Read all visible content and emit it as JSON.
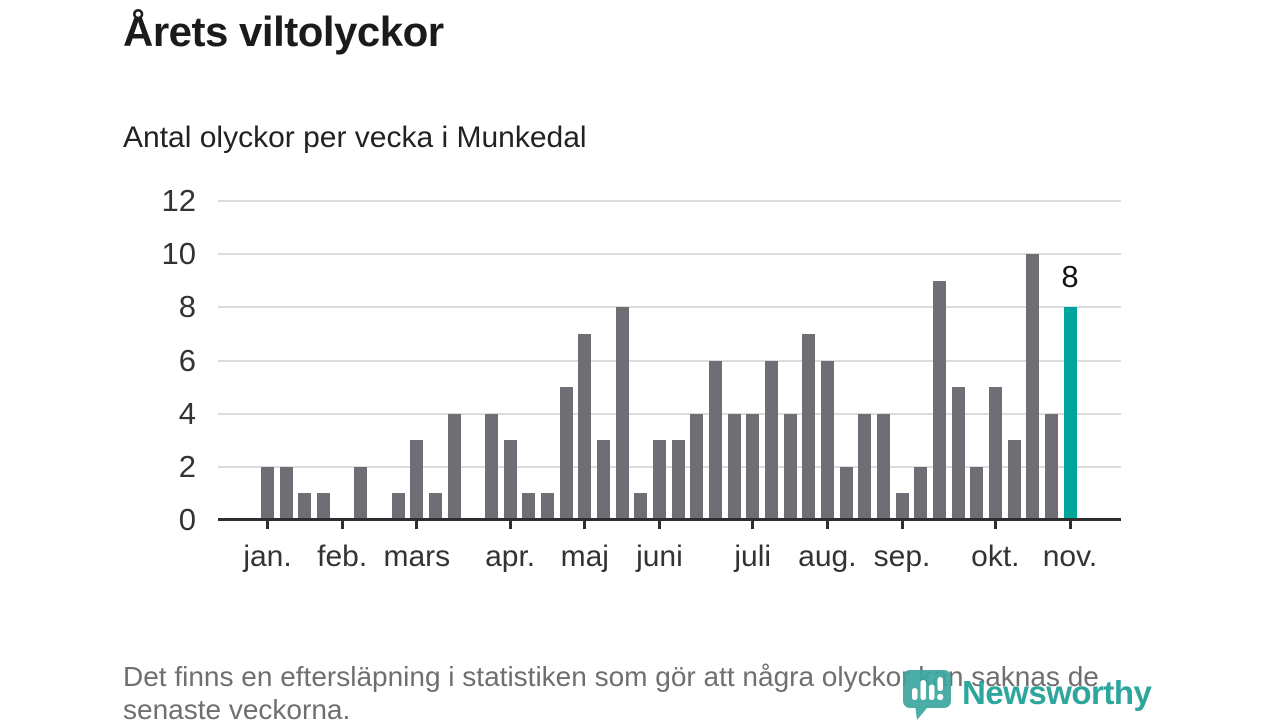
{
  "title": "Årets viltolyckor",
  "subtitle": "Antal olyckor per vecka i Munkedal",
  "footer": "Det finns en eftersläpning i statistiken som gör att några olyckor kan saknas de senaste veckorna.",
  "logo": {
    "text": "Newsworthy",
    "icon": "bar-chart-speech-bubble-icon"
  },
  "colors": {
    "bar": "#706d75",
    "highlight": "#00a69b",
    "grid": "#dcdcdc",
    "axis": "#2e2e2e",
    "tick_text": "#333333",
    "logo": "#2da69c"
  },
  "chart_data": {
    "type": "bar",
    "title": "Årets viltolyckor",
    "subtitle": "Antal olyckor per vecka i Munkedal",
    "x_unit": "vecka",
    "ylim": [
      0,
      12
    ],
    "yticks": [
      0,
      2,
      4,
      6,
      8,
      10,
      12
    ],
    "grid": true,
    "values": [
      2,
      2,
      1,
      1,
      0,
      2,
      0,
      1,
      3,
      1,
      4,
      0,
      4,
      3,
      1,
      1,
      5,
      7,
      3,
      8,
      1,
      3,
      3,
      4,
      6,
      4,
      4,
      6,
      4,
      7,
      6,
      2,
      4,
      4,
      1,
      2,
      9,
      5,
      2,
      5,
      3,
      10,
      4,
      8
    ],
    "month_ticks": [
      {
        "label": "jan.",
        "week": 1
      },
      {
        "label": "feb.",
        "week": 5
      },
      {
        "label": "mars",
        "week": 9
      },
      {
        "label": "apr.",
        "week": 14
      },
      {
        "label": "maj",
        "week": 18
      },
      {
        "label": "juni",
        "week": 22
      },
      {
        "label": "juli",
        "week": 27
      },
      {
        "label": "aug.",
        "week": 31
      },
      {
        "label": "sep.",
        "week": 35
      },
      {
        "label": "okt.",
        "week": 40
      },
      {
        "label": "nov.",
        "week": 44
      }
    ],
    "highlight": {
      "index": 44,
      "value": 8,
      "label": "8"
    }
  }
}
